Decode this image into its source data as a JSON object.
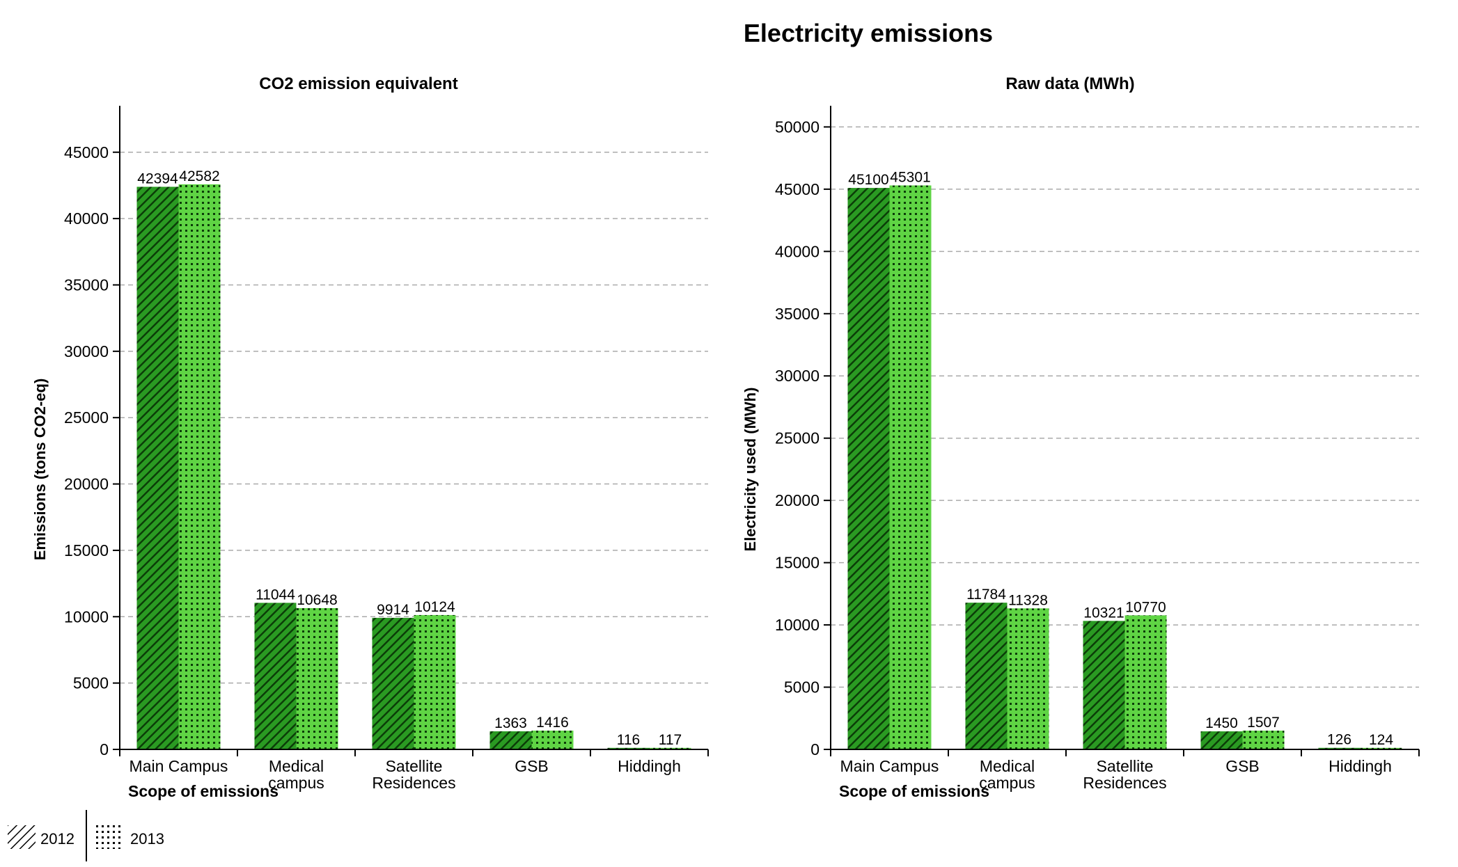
{
  "title": "Electricity emissions",
  "legend": {
    "placement": "bottom-left",
    "items": [
      {
        "label": "2012",
        "pattern": "diagonal-hatch"
      },
      {
        "label": "2013",
        "pattern": "dots"
      }
    ]
  },
  "colors": {
    "series_2012_fill": "#2a9a22",
    "series_2012_hatch": "#0b3d08",
    "series_2013_fill": "#5fd444",
    "series_2013_dot": "#0b3d08",
    "grid": "#aaaaaa",
    "axis": "#000000"
  },
  "chart_data": [
    {
      "type": "bar",
      "title": "CO2 emission equivalent",
      "xlabel": "Scope of emissions",
      "ylabel": "Emissions (tons CO2-eq)",
      "categories": [
        "Main Campus",
        "Medical campus",
        "Satellite Residences",
        "GSB",
        "Hiddingh"
      ],
      "category_lines": [
        [
          "Main Campus"
        ],
        [
          "Medical",
          "campus"
        ],
        [
          "Satellite",
          "Residences"
        ],
        [
          "GSB"
        ],
        [
          "Hiddingh"
        ]
      ],
      "series": [
        {
          "name": "2012",
          "values": [
            42394,
            11044,
            9914,
            1363,
            116
          ]
        },
        {
          "name": "2013",
          "values": [
            42582,
            10648,
            10124,
            1416,
            117
          ]
        }
      ],
      "ylim": [
        0,
        48500
      ],
      "yticks": [
        0,
        5000,
        10000,
        15000,
        20000,
        25000,
        30000,
        35000,
        40000,
        45000
      ],
      "grid": true
    },
    {
      "type": "bar",
      "title": "Raw data (MWh)",
      "xlabel": "Scope of emissions",
      "ylabel": "Electricity used (MWh)",
      "categories": [
        "Main Campus",
        "Medical campus",
        "Satellite Residences",
        "GSB",
        "Hiddingh"
      ],
      "category_lines": [
        [
          "Main Campus"
        ],
        [
          "Medical",
          "campus"
        ],
        [
          "Satellite",
          "Residences"
        ],
        [
          "GSB"
        ],
        [
          "Hiddingh"
        ]
      ],
      "series": [
        {
          "name": "2012",
          "values": [
            45100,
            11784,
            10321,
            1450,
            126
          ]
        },
        {
          "name": "2013",
          "values": [
            45301,
            11328,
            10770,
            1507,
            124
          ]
        }
      ],
      "ylim": [
        0,
        51700
      ],
      "yticks": [
        0,
        5000,
        10000,
        15000,
        20000,
        25000,
        30000,
        35000,
        40000,
        45000,
        50000
      ],
      "grid": true
    }
  ]
}
